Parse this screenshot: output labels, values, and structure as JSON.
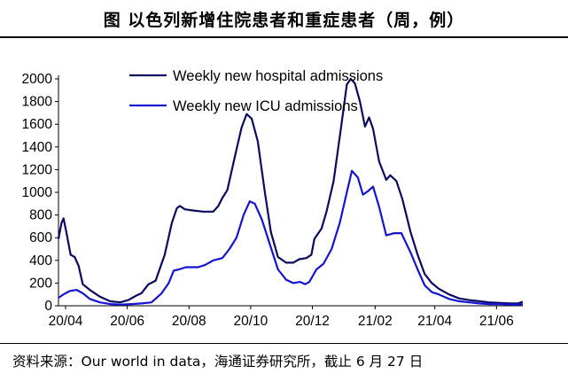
{
  "header": {
    "title": "图  以色列新增住院患者和重症患者（周，例）"
  },
  "footer": {
    "source": "资料来源：Our world in data，海通证券研究所，截止 6 月 27 日"
  },
  "chart_data": {
    "type": "line",
    "title": "以色列新增住院患者和重症患者（周，例）",
    "xlabel": "",
    "ylabel": "",
    "x_ticks": [
      "20/04",
      "20/06",
      "20/08",
      "20/10",
      "20/12",
      "21/02",
      "21/04",
      "21/06"
    ],
    "y_ticks": [
      "0",
      "200",
      "400",
      "600",
      "800",
      "1000",
      "1200",
      "1400",
      "1600",
      "1800",
      "2000"
    ],
    "xlim": [
      "2020-03-25",
      "2021-06-27"
    ],
    "ylim": [
      0,
      2000
    ],
    "grid": false,
    "legend_position": "top-center",
    "series": [
      {
        "name": "Weekly new hospital admissions",
        "color": "#0a0a5e",
        "points": [
          [
            "2020-03-25",
            590
          ],
          [
            "2020-03-28",
            730
          ],
          [
            "2020-03-30",
            770
          ],
          [
            "2020-04-02",
            640
          ],
          [
            "2020-04-06",
            450
          ],
          [
            "2020-04-10",
            430
          ],
          [
            "2020-04-14",
            350
          ],
          [
            "2020-04-18",
            190
          ],
          [
            "2020-04-25",
            140
          ],
          [
            "2020-05-05",
            80
          ],
          [
            "2020-05-15",
            40
          ],
          [
            "2020-05-25",
            30
          ],
          [
            "2020-06-02",
            50
          ],
          [
            "2020-06-10",
            90
          ],
          [
            "2020-06-15",
            110
          ],
          [
            "2020-06-22",
            190
          ],
          [
            "2020-06-29",
            220
          ],
          [
            "2020-07-08",
            450
          ],
          [
            "2020-07-15",
            730
          ],
          [
            "2020-07-20",
            860
          ],
          [
            "2020-07-23",
            880
          ],
          [
            "2020-07-28",
            850
          ],
          [
            "2020-08-05",
            840
          ],
          [
            "2020-08-15",
            830
          ],
          [
            "2020-08-25",
            830
          ],
          [
            "2020-08-30",
            880
          ],
          [
            "2020-09-03",
            950
          ],
          [
            "2020-09-08",
            1020
          ],
          [
            "2020-09-15",
            1300
          ],
          [
            "2020-09-22",
            1570
          ],
          [
            "2020-09-27",
            1690
          ],
          [
            "2020-10-02",
            1650
          ],
          [
            "2020-10-08",
            1450
          ],
          [
            "2020-10-15",
            1000
          ],
          [
            "2020-10-21",
            650
          ],
          [
            "2020-10-28",
            430
          ],
          [
            "2020-11-05",
            380
          ],
          [
            "2020-11-12",
            380
          ],
          [
            "2020-11-18",
            410
          ],
          [
            "2020-11-25",
            420
          ],
          [
            "2020-11-30",
            450
          ],
          [
            "2020-12-03",
            590
          ],
          [
            "2020-12-10",
            680
          ],
          [
            "2020-12-15",
            830
          ],
          [
            "2020-12-22",
            1100
          ],
          [
            "2020-12-29",
            1550
          ],
          [
            "2021-01-04",
            1950
          ],
          [
            "2021-01-08",
            2000
          ],
          [
            "2021-01-12",
            1960
          ],
          [
            "2021-01-17",
            1800
          ],
          [
            "2021-01-22",
            1580
          ],
          [
            "2021-01-26",
            1660
          ],
          [
            "2021-01-30",
            1560
          ],
          [
            "2021-02-05",
            1270
          ],
          [
            "2021-02-12",
            1110
          ],
          [
            "2021-02-16",
            1150
          ],
          [
            "2021-02-22",
            1100
          ],
          [
            "2021-02-28",
            940
          ],
          [
            "2021-03-08",
            650
          ],
          [
            "2021-03-15",
            450
          ],
          [
            "2021-03-22",
            280
          ],
          [
            "2021-03-29",
            200
          ],
          [
            "2021-04-05",
            150
          ],
          [
            "2021-04-15",
            100
          ],
          [
            "2021-04-25",
            65
          ],
          [
            "2021-05-05",
            50
          ],
          [
            "2021-05-15",
            40
          ],
          [
            "2021-05-25",
            30
          ],
          [
            "2021-06-05",
            25
          ],
          [
            "2021-06-15",
            20
          ],
          [
            "2021-06-22",
            20
          ],
          [
            "2021-06-27",
            35
          ]
        ]
      },
      {
        "name": "Weekly new ICU admissions",
        "color": "#1414d2",
        "points": [
          [
            "2020-03-25",
            70
          ],
          [
            "2020-03-30",
            100
          ],
          [
            "2020-04-05",
            130
          ],
          [
            "2020-04-12",
            140
          ],
          [
            "2020-04-18",
            110
          ],
          [
            "2020-04-25",
            60
          ],
          [
            "2020-05-05",
            30
          ],
          [
            "2020-05-15",
            15
          ],
          [
            "2020-05-25",
            10
          ],
          [
            "2020-06-05",
            15
          ],
          [
            "2020-06-15",
            20
          ],
          [
            "2020-06-25",
            30
          ],
          [
            "2020-07-05",
            110
          ],
          [
            "2020-07-12",
            200
          ],
          [
            "2020-07-17",
            310
          ],
          [
            "2020-07-22",
            320
          ],
          [
            "2020-07-29",
            340
          ],
          [
            "2020-08-10",
            340
          ],
          [
            "2020-08-17",
            360
          ],
          [
            "2020-08-25",
            400
          ],
          [
            "2020-09-03",
            420
          ],
          [
            "2020-09-10",
            500
          ],
          [
            "2020-09-17",
            600
          ],
          [
            "2020-09-24",
            800
          ],
          [
            "2020-09-30",
            920
          ],
          [
            "2020-10-05",
            900
          ],
          [
            "2020-10-12",
            760
          ],
          [
            "2020-10-20",
            540
          ],
          [
            "2020-10-28",
            320
          ],
          [
            "2020-11-05",
            230
          ],
          [
            "2020-11-12",
            200
          ],
          [
            "2020-11-19",
            210
          ],
          [
            "2020-11-24",
            190
          ],
          [
            "2020-11-28",
            210
          ],
          [
            "2020-12-05",
            320
          ],
          [
            "2020-12-12",
            370
          ],
          [
            "2020-12-20",
            500
          ],
          [
            "2020-12-28",
            730
          ],
          [
            "2021-01-04",
            1000
          ],
          [
            "2021-01-09",
            1190
          ],
          [
            "2021-01-15",
            1130
          ],
          [
            "2021-01-20",
            980
          ],
          [
            "2021-01-25",
            1010
          ],
          [
            "2021-01-30",
            1050
          ],
          [
            "2021-02-05",
            870
          ],
          [
            "2021-02-12",
            620
          ],
          [
            "2021-02-20",
            640
          ],
          [
            "2021-02-27",
            640
          ],
          [
            "2021-03-08",
            470
          ],
          [
            "2021-03-15",
            320
          ],
          [
            "2021-03-22",
            180
          ],
          [
            "2021-03-29",
            120
          ],
          [
            "2021-04-05",
            100
          ],
          [
            "2021-04-15",
            60
          ],
          [
            "2021-04-25",
            40
          ],
          [
            "2021-05-05",
            30
          ],
          [
            "2021-05-15",
            20
          ],
          [
            "2021-05-25",
            15
          ],
          [
            "2021-06-05",
            15
          ],
          [
            "2021-06-15",
            10
          ],
          [
            "2021-06-22",
            10
          ],
          [
            "2021-06-27",
            15
          ]
        ]
      }
    ]
  }
}
